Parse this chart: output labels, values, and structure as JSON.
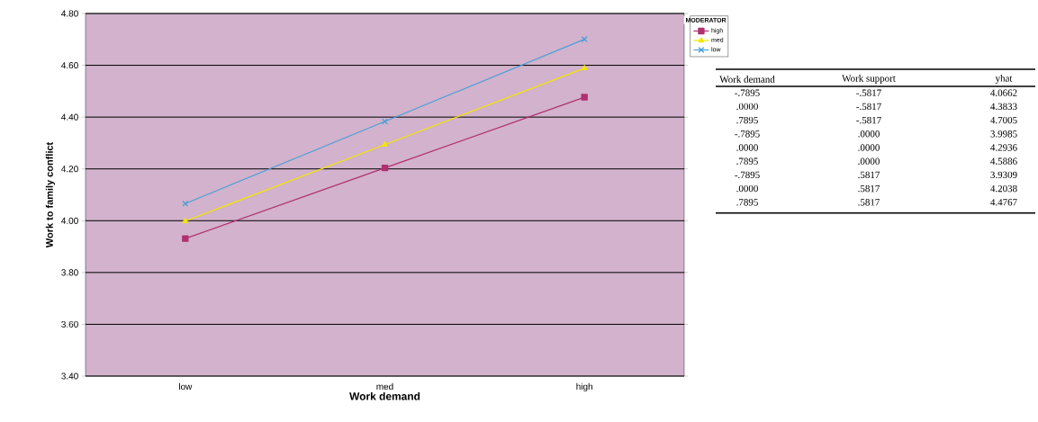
{
  "chart_data": [
    {
      "type": "line",
      "xlabel": "Work demand",
      "ylabel": "Work to family conflict",
      "legend_title": "MODERATOR",
      "categories": [
        "low",
        "med",
        "high"
      ],
      "series": [
        {
          "name": "high",
          "color": "#b03070",
          "marker": "square",
          "values": [
            3.9309,
            4.2038,
            4.4767
          ]
        },
        {
          "name": "med",
          "color": "#f2e600",
          "marker": "triangle",
          "values": [
            3.9985,
            4.2936,
            4.5886
          ]
        },
        {
          "name": "low",
          "color": "#4c9fd8",
          "marker": "cross",
          "values": [
            4.0662,
            4.3833,
            4.7005
          ]
        }
      ],
      "ylim": [
        3.4,
        4.8
      ],
      "yticks": [
        {
          "value": 3.4,
          "label": "3.40"
        },
        {
          "value": 3.6,
          "label": "3.60"
        },
        {
          "value": 3.8,
          "label": "3.80"
        },
        {
          "value": 4.0,
          "label": "4.00"
        },
        {
          "value": 4.2,
          "label": "4.20"
        },
        {
          "value": 4.4,
          "label": "4.40"
        },
        {
          "value": 4.6,
          "label": "4.60"
        },
        {
          "value": 4.8,
          "label": "4.80"
        }
      ],
      "grid": "y",
      "legend": "top right",
      "line_style": "solid"
    },
    {
      "type": "other",
      "annotations": [
        "Work demand",
        "Work support",
        "yhat",
        "-.7895",
        "-.5817",
        "4.0662",
        ".0000",
        "-.5817",
        "4.3833",
        ".7895",
        "-.5817",
        "4.7005",
        "-.7895",
        ".0000",
        "3.9985",
        ".0000",
        ".0000",
        "4.2936",
        ".7895",
        ".0000",
        "4.5886",
        "-.7895",
        ".5817",
        "3.9309",
        ".0000",
        ".5817",
        "4.2038",
        ".7895",
        ".5817",
        "4.4767"
      ]
    }
  ]
}
